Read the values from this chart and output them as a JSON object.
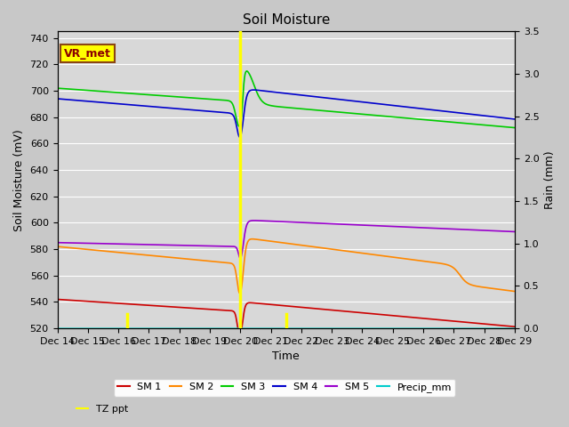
{
  "title": "Soil Moisture",
  "xlabel": "Time",
  "ylabel_left": "Soil Moisture (mV)",
  "ylabel_right": "Rain (mm)",
  "ylim_left": [
    520,
    745
  ],
  "ylim_right": [
    0.0,
    3.5
  ],
  "yticks_left": [
    520,
    540,
    560,
    580,
    600,
    620,
    640,
    660,
    680,
    700,
    720,
    740
  ],
  "yticks_right": [
    0.0,
    0.5,
    1.0,
    1.5,
    2.0,
    2.5,
    3.0,
    3.5
  ],
  "bg_color": "#d8d8d8",
  "fig_color": "#c8c8c8",
  "sm1_color": "#cc0000",
  "sm2_color": "#ff8800",
  "sm3_color": "#00cc00",
  "sm4_color": "#0000cc",
  "sm5_color": "#9900cc",
  "precip_color": "#00cccc",
  "tz_color": "#ffff00",
  "annotation_text": "VR_met",
  "annotation_box_color": "#ffff00",
  "annotation_text_color": "#8b0000",
  "annotation_edge_color": "#8b4513",
  "legend_ncol_row1": 6,
  "legend_ncol_row2": 1,
  "tz_events": [
    {
      "day": 2.3,
      "val": 0.17
    },
    {
      "day": 6.0,
      "val": 3.5
    },
    {
      "day": 7.5,
      "val": 0.17
    }
  ]
}
